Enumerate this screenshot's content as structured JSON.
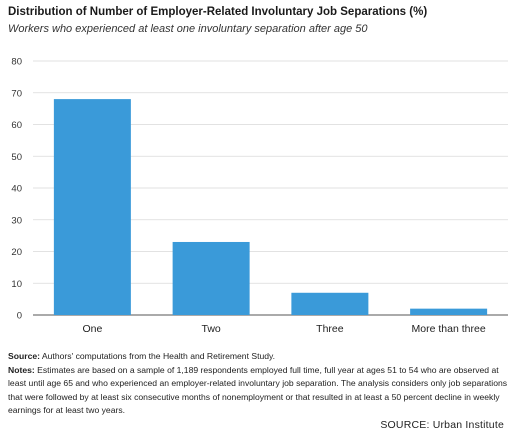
{
  "header": {
    "title": "Distribution of Number of Employer-Related Involuntary Job Separations (%)",
    "subtitle": "Workers who experienced at least one involuntary separation after age 50"
  },
  "chart_data": {
    "type": "bar",
    "categories": [
      "One",
      "Two",
      "Three",
      "More than three"
    ],
    "values": [
      68,
      23,
      7,
      2
    ],
    "ylim": [
      0,
      80
    ],
    "yticks": [
      "0",
      "10",
      "20",
      "30",
      "40",
      "50",
      "60",
      "70",
      "80"
    ],
    "grid": true,
    "bar_color": "#3a9ad9",
    "grid_color": "#d9d9d9"
  },
  "footer": {
    "source_label": "Source:",
    "source_text": "Authors' computations from the Health and Retirement Study.",
    "notes_label": "Notes:",
    "notes_text": "Estimates are based on a sample of 1,189 respondents employed full time, full year at ages 51 to 54 who are observed at least until age 65 and who experienced an employer-related involuntary job separation. The analysis considers only job separations that were followed by at least six consecutive months of nonemployment or that resulted in at least a 50 percent decline in weekly earnings for at least two years.",
    "credit": "SOURCE: Urban Institute"
  }
}
